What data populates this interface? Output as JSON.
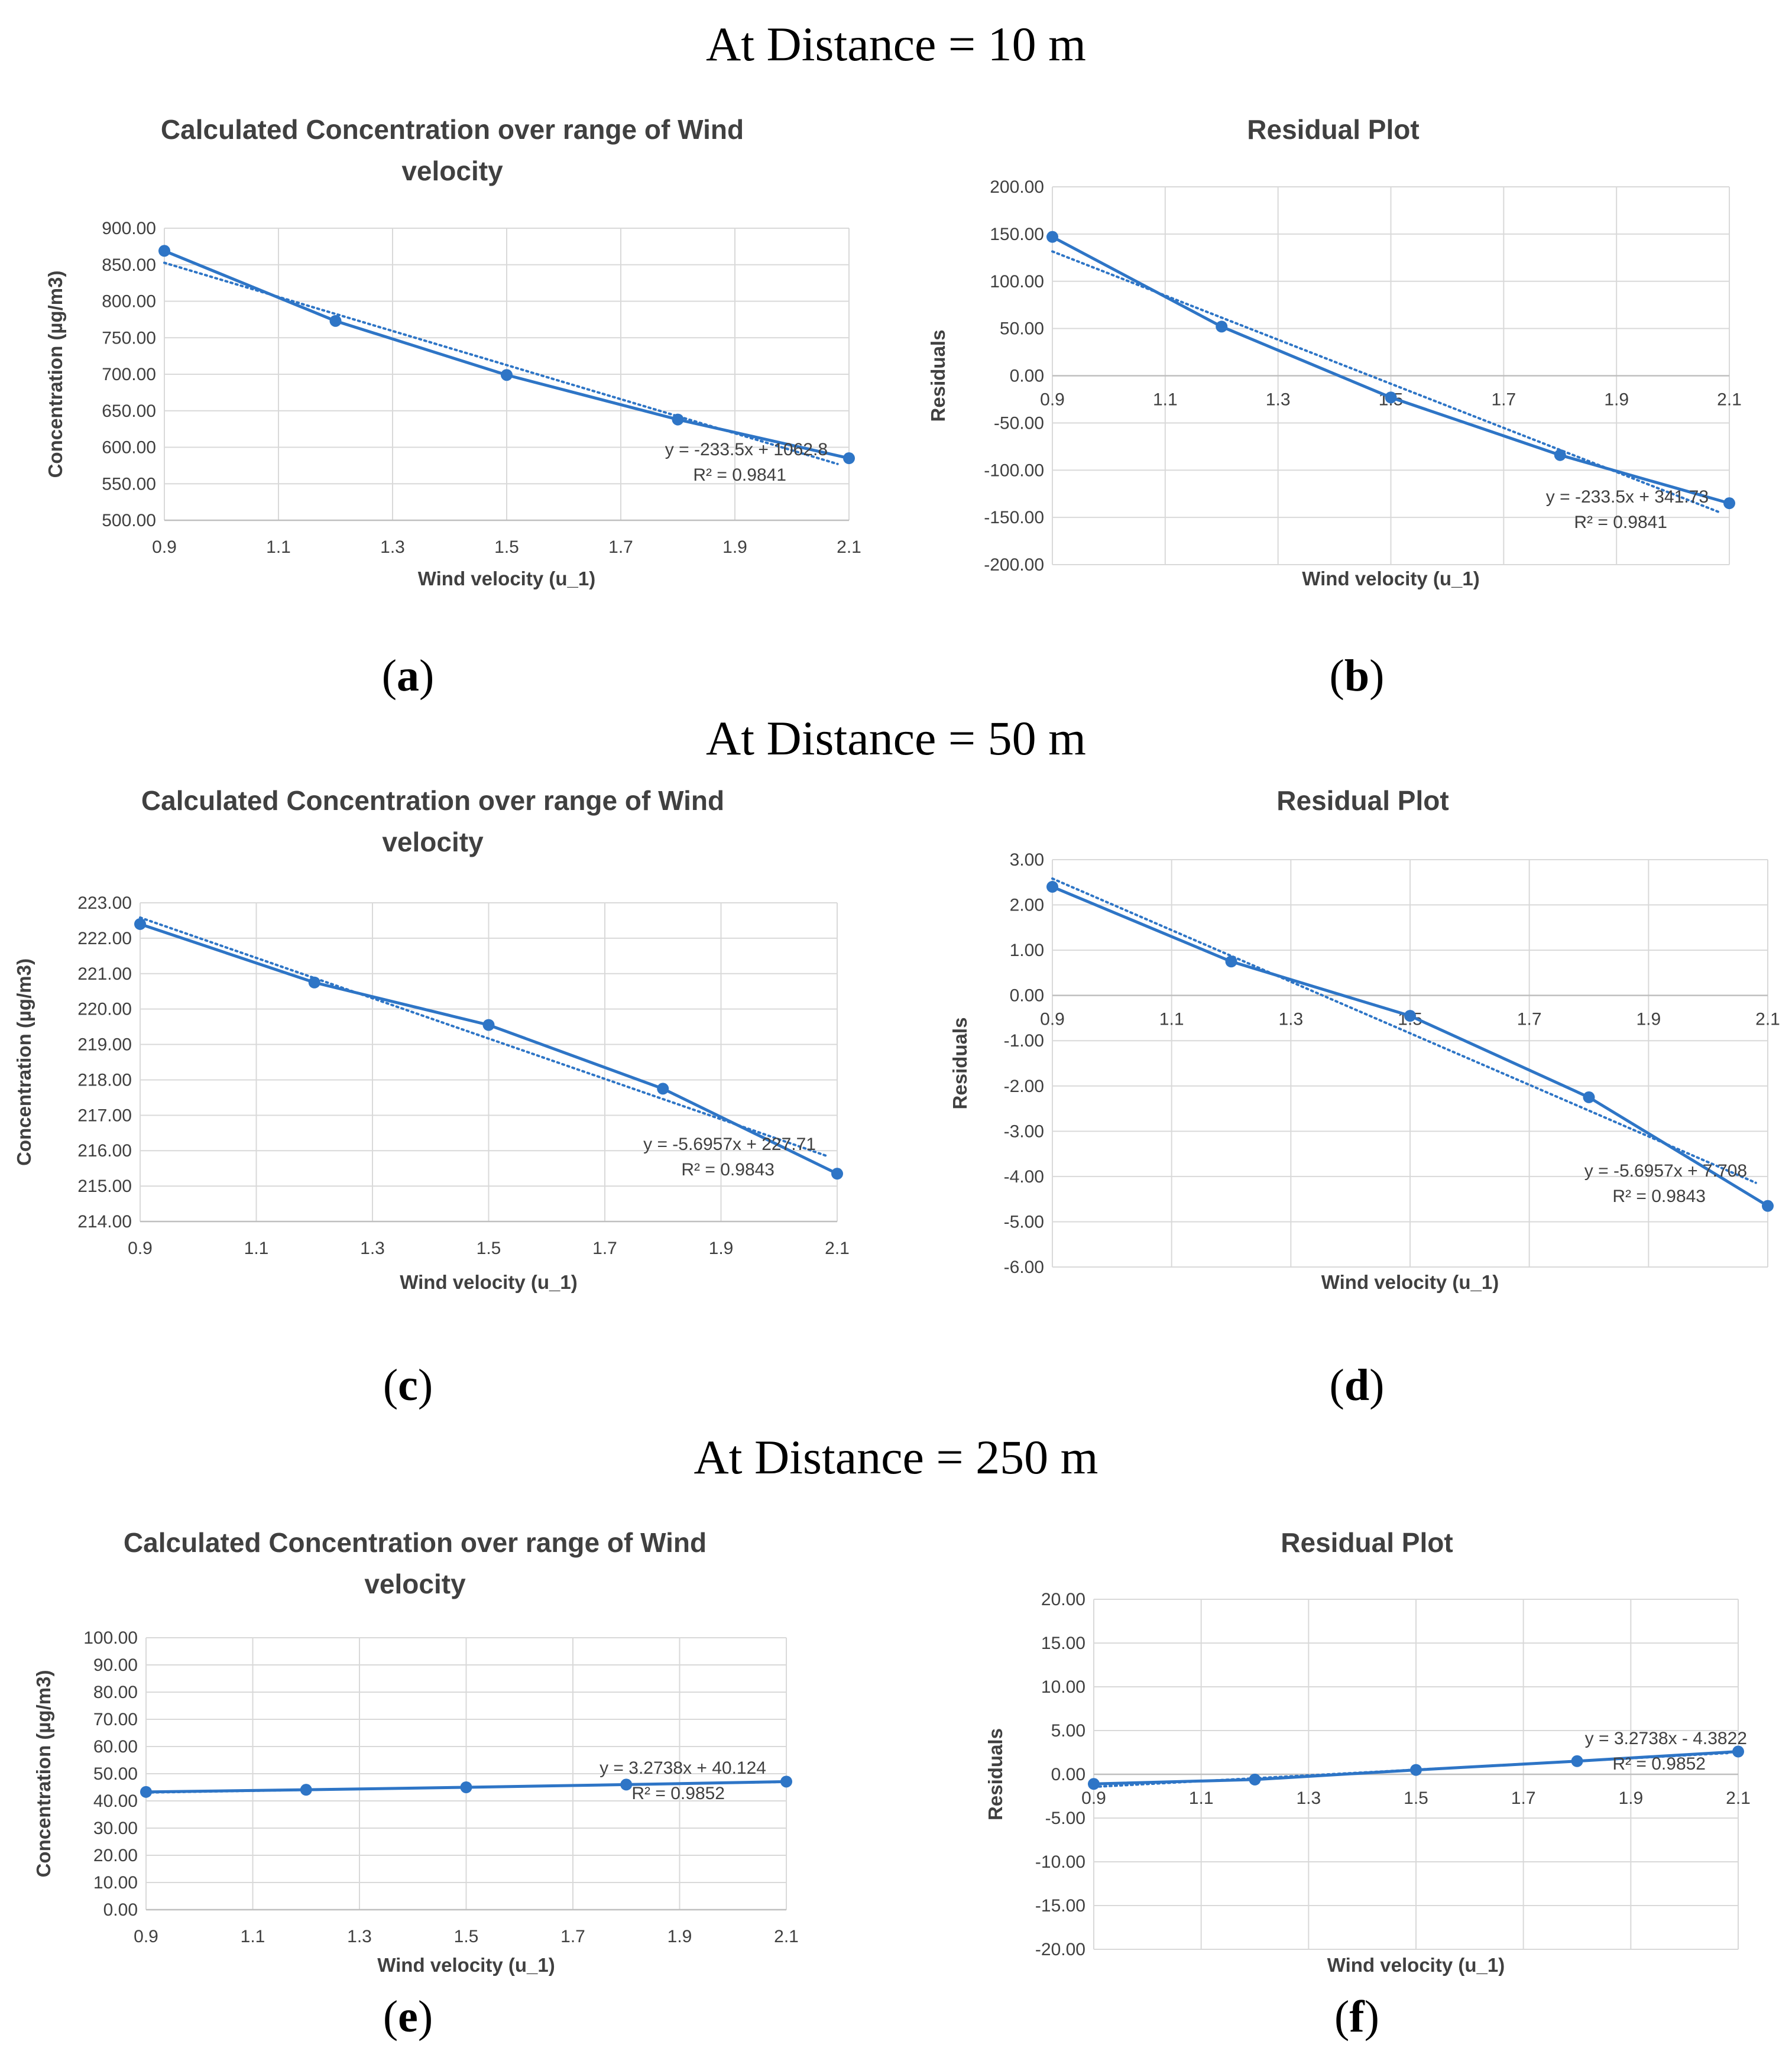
{
  "headings": {
    "d10": "At Distance = 10 m",
    "d50": "At Distance = 50 m",
    "d250": "At Distance = 250 m"
  },
  "panel_labels": {
    "a": "a",
    "b": "b",
    "c": "c",
    "d": "d",
    "e": "e",
    "f": "f"
  },
  "colors": {
    "series": "#2e75c6",
    "grid": "#d9d9d9",
    "text": "#404040"
  },
  "chart_data": [
    {
      "id": "a",
      "type": "line",
      "title": [
        "Calculated Concentration over range of Wind",
        "velocity"
      ],
      "xlabel": "Wind velocity (u_1)",
      "ylabel": "Concentration (µg/m3)",
      "x": [
        0.9,
        1.2,
        1.5,
        1.8,
        2.1
      ],
      "values": [
        869,
        773,
        699,
        638,
        585
      ],
      "xlim": [
        0.9,
        2.1
      ],
      "ylim": [
        500,
        900
      ],
      "xticks": [
        "0.9",
        "1.1",
        "1.3",
        "1.5",
        "1.7",
        "1.9",
        "2.1"
      ],
      "yticks": [
        "500.00",
        "550.00",
        "600.00",
        "650.00",
        "700.00",
        "750.00",
        "800.00",
        "850.00",
        "900.00"
      ],
      "trendline": {
        "slope": -233.5,
        "intercept": 1062.8,
        "equation": "y = -233.5x + 1062.8",
        "r2": "R² = 0.9841"
      }
    },
    {
      "id": "b",
      "type": "line",
      "title": [
        "Residual Plot"
      ],
      "xlabel": "Wind velocity (u_1)",
      "ylabel": "Residuals",
      "x": [
        0.9,
        1.2,
        1.5,
        1.8,
        2.1
      ],
      "values": [
        147,
        52,
        -23,
        -84,
        -135
      ],
      "xlim": [
        0.9,
        2.1
      ],
      "ylim": [
        -200,
        200
      ],
      "xticks": [
        "0.9",
        "1.1",
        "1.3",
        "1.5",
        "1.7",
        "1.9",
        "2.1"
      ],
      "yticks": [
        "-200.00",
        "-150.00",
        "-100.00",
        "-50.00",
        "0.00",
        "50.00",
        "100.00",
        "150.00",
        "200.00"
      ],
      "trendline": {
        "slope": -233.5,
        "intercept": 341.73,
        "equation": "y = -233.5x + 341.73",
        "r2": "R² = 0.9841"
      }
    },
    {
      "id": "c",
      "type": "line",
      "title": [
        "Calculated Concentration over range of Wind",
        "velocity"
      ],
      "xlabel": "Wind velocity (u_1)",
      "ylabel": "Concentration (µg/m3)",
      "x": [
        0.9,
        1.2,
        1.5,
        1.8,
        2.1
      ],
      "values": [
        222.4,
        220.75,
        219.55,
        217.75,
        215.35
      ],
      "xlim": [
        0.9,
        2.1
      ],
      "ylim": [
        214,
        223
      ],
      "xticks": [
        "0.9",
        "1.1",
        "1.3",
        "1.5",
        "1.7",
        "1.9",
        "2.1"
      ],
      "yticks": [
        "214.00",
        "215.00",
        "216.00",
        "217.00",
        "218.00",
        "219.00",
        "220.00",
        "221.00",
        "222.00",
        "223.00"
      ],
      "trendline": {
        "slope": -5.6957,
        "intercept": 227.71,
        "equation": "y = -5.6957x + 227.71",
        "r2": "R² = 0.9843"
      }
    },
    {
      "id": "d",
      "type": "line",
      "title": [
        "Residual Plot"
      ],
      "xlabel": "Wind velocity (u_1)",
      "ylabel": "Residuals",
      "x": [
        0.9,
        1.2,
        1.5,
        1.8,
        2.1
      ],
      "values": [
        2.4,
        0.75,
        -0.45,
        -2.25,
        -4.65
      ],
      "xlim": [
        0.9,
        2.1
      ],
      "ylim": [
        -6,
        3
      ],
      "xticks": [
        "0.9",
        "1.1",
        "1.3",
        "1.5",
        "1.7",
        "1.9",
        "2.1"
      ],
      "yticks": [
        "-6.00",
        "-5.00",
        "-4.00",
        "-3.00",
        "-2.00",
        "-1.00",
        "0.00",
        "1.00",
        "2.00",
        "3.00"
      ],
      "trendline": {
        "slope": -5.6957,
        "intercept": 7.708,
        "equation": "y = -5.6957x + 7.708",
        "r2": "R² = 0.9843"
      }
    },
    {
      "id": "e",
      "type": "line",
      "title": [
        "Calculated Concentration over range of Wind",
        "velocity"
      ],
      "xlabel": "Wind velocity (u_1)",
      "ylabel": "Concentration (µg/m3)",
      "x": [
        0.9,
        1.2,
        1.5,
        1.8,
        2.1
      ],
      "values": [
        43.3,
        44.1,
        45.0,
        46.0,
        47.1
      ],
      "xlim": [
        0.9,
        2.1
      ],
      "ylim": [
        0,
        100
      ],
      "xticks": [
        "0.9",
        "1.1",
        "1.3",
        "1.5",
        "1.7",
        "1.9",
        "2.1"
      ],
      "yticks": [
        "0.00",
        "10.00",
        "20.00",
        "30.00",
        "40.00",
        "50.00",
        "60.00",
        "70.00",
        "80.00",
        "90.00",
        "100.00"
      ],
      "trendline": {
        "slope": 3.2738,
        "intercept": 40.124,
        "equation": "y = 3.2738x + 40.124",
        "r2": "R² = 0.9852"
      }
    },
    {
      "id": "f",
      "type": "line",
      "title": [
        "Residual Plot"
      ],
      "xlabel": "Wind velocity (u_1)",
      "ylabel": "Residuals",
      "x": [
        0.9,
        1.2,
        1.5,
        1.8,
        2.1
      ],
      "values": [
        -1.1,
        -0.6,
        0.5,
        1.5,
        2.6
      ],
      "xlim": [
        0.9,
        2.1
      ],
      "ylim": [
        -20,
        20
      ],
      "xticks": [
        "0.9",
        "1.1",
        "1.3",
        "1.5",
        "1.7",
        "1.9",
        "2.1"
      ],
      "yticks": [
        "-20.00",
        "-15.00",
        "-10.00",
        "-5.00",
        "0.00",
        "5.00",
        "10.00",
        "15.00",
        "20.00"
      ],
      "trendline": {
        "slope": 3.2738,
        "intercept": -4.3822,
        "equation": "y = 3.2738x - 4.3822",
        "r2": "R² = 0.9852"
      }
    }
  ]
}
